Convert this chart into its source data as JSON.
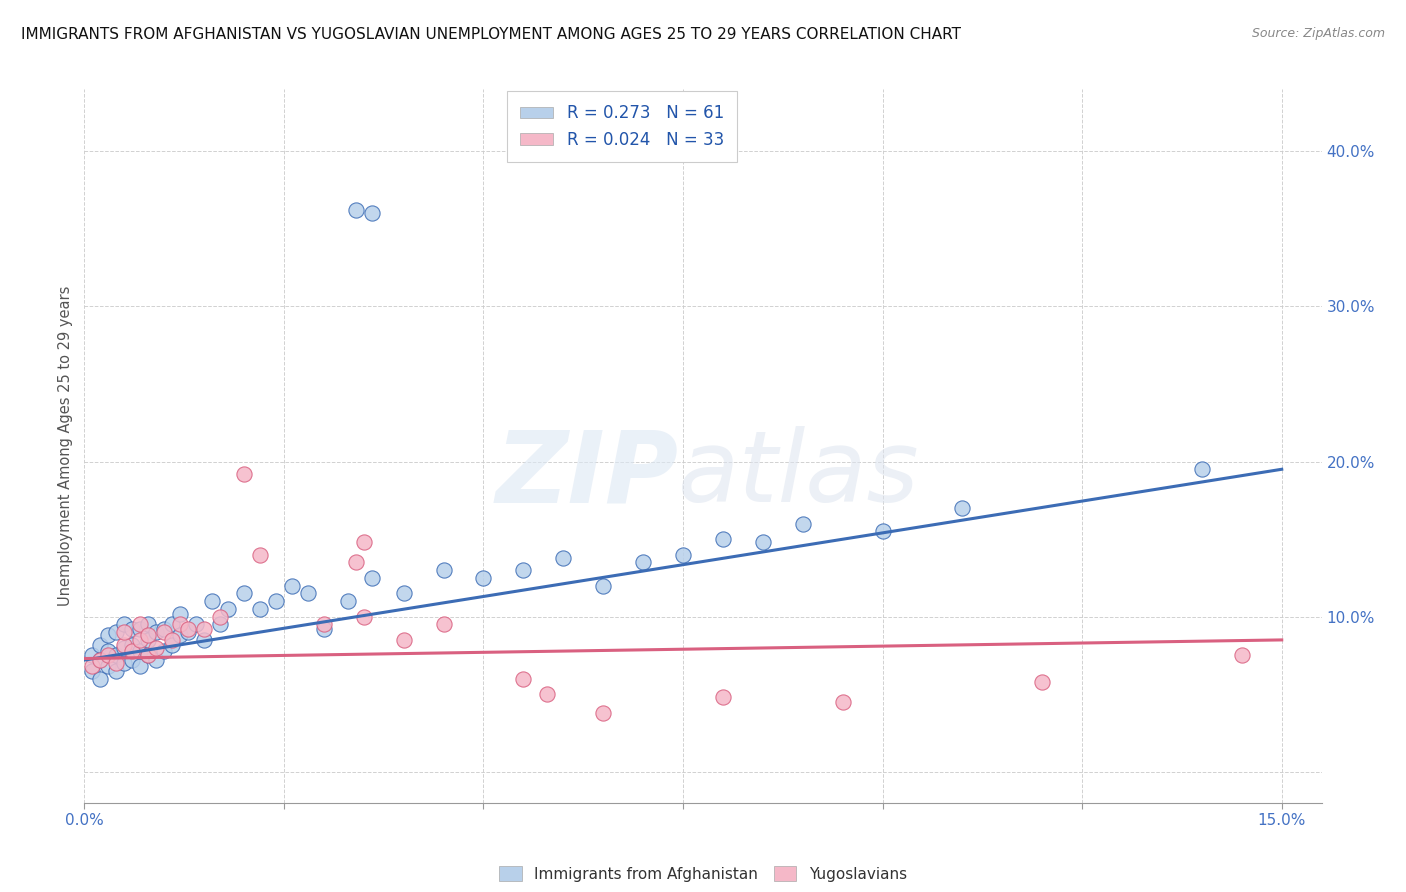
{
  "title": "IMMIGRANTS FROM AFGHANISTAN VS YUGOSLAVIAN UNEMPLOYMENT AMONG AGES 25 TO 29 YEARS CORRELATION CHART",
  "source": "Source: ZipAtlas.com",
  "ylabel": "Unemployment Among Ages 25 to 29 years",
  "xlim": [
    0.0,
    0.155
  ],
  "ylim": [
    -0.02,
    0.44
  ],
  "blue_R": 0.273,
  "blue_N": 61,
  "pink_R": 0.024,
  "pink_N": 33,
  "blue_color": "#b8d0ea",
  "pink_color": "#f5b8c8",
  "blue_line_color": "#3c6cb5",
  "pink_line_color": "#d96080",
  "legend_label_blue": "Immigrants from Afghanistan",
  "legend_label_pink": "Yugoslavians",
  "blue_trend_x": [
    0.0,
    0.15
  ],
  "blue_trend_y": [
    0.072,
    0.195
  ],
  "pink_trend_x": [
    0.0,
    0.15
  ],
  "pink_trend_y": [
    0.073,
    0.085
  ],
  "blue_scatter_x": [
    0.001,
    0.001,
    0.002,
    0.002,
    0.002,
    0.003,
    0.003,
    0.003,
    0.004,
    0.004,
    0.004,
    0.005,
    0.005,
    0.005,
    0.006,
    0.006,
    0.006,
    0.007,
    0.007,
    0.007,
    0.008,
    0.008,
    0.008,
    0.009,
    0.009,
    0.01,
    0.01,
    0.011,
    0.011,
    0.012,
    0.012,
    0.013,
    0.014,
    0.015,
    0.016,
    0.017,
    0.018,
    0.02,
    0.022,
    0.024,
    0.026,
    0.028,
    0.03,
    0.033,
    0.036,
    0.04,
    0.045,
    0.05,
    0.055,
    0.06,
    0.065,
    0.07,
    0.075,
    0.08,
    0.085,
    0.09,
    0.1,
    0.11,
    0.14,
    0.034,
    0.036
  ],
  "blue_scatter_y": [
    0.065,
    0.075,
    0.06,
    0.072,
    0.082,
    0.068,
    0.078,
    0.088,
    0.065,
    0.075,
    0.09,
    0.07,
    0.08,
    0.095,
    0.072,
    0.082,
    0.092,
    0.068,
    0.078,
    0.092,
    0.075,
    0.085,
    0.095,
    0.072,
    0.09,
    0.078,
    0.092,
    0.082,
    0.095,
    0.088,
    0.102,
    0.09,
    0.095,
    0.085,
    0.11,
    0.095,
    0.105,
    0.115,
    0.105,
    0.11,
    0.12,
    0.115,
    0.092,
    0.11,
    0.125,
    0.115,
    0.13,
    0.125,
    0.13,
    0.138,
    0.12,
    0.135,
    0.14,
    0.15,
    0.148,
    0.16,
    0.155,
    0.17,
    0.195,
    0.362,
    0.36
  ],
  "pink_scatter_x": [
    0.001,
    0.002,
    0.003,
    0.004,
    0.005,
    0.005,
    0.006,
    0.007,
    0.007,
    0.008,
    0.008,
    0.009,
    0.01,
    0.011,
    0.012,
    0.013,
    0.015,
    0.017,
    0.02,
    0.022,
    0.03,
    0.035,
    0.04,
    0.045,
    0.055,
    0.058,
    0.065,
    0.08,
    0.095,
    0.12,
    0.034,
    0.035,
    0.145
  ],
  "pink_scatter_y": [
    0.068,
    0.072,
    0.075,
    0.07,
    0.082,
    0.09,
    0.078,
    0.085,
    0.095,
    0.075,
    0.088,
    0.08,
    0.09,
    0.085,
    0.095,
    0.092,
    0.092,
    0.1,
    0.192,
    0.14,
    0.095,
    0.1,
    0.085,
    0.095,
    0.06,
    0.05,
    0.038,
    0.048,
    0.045,
    0.058,
    0.135,
    0.148,
    0.075
  ]
}
